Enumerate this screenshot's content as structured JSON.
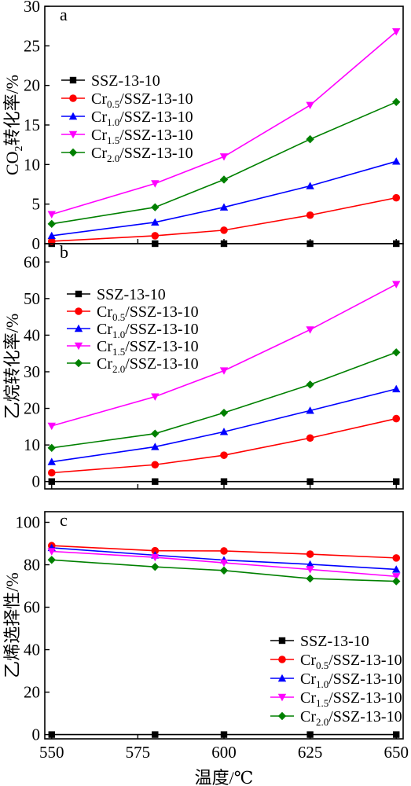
{
  "chart_data": [
    {
      "type": "line",
      "panel_label": "a",
      "ylabel_main": "CO",
      "ylabel_sub": "2",
      "ylabel_rest": "转化率/%",
      "ylim": [
        0,
        30
      ],
      "yticks": [
        0,
        5,
        10,
        15,
        20,
        25,
        30
      ],
      "x": [
        550,
        580,
        600,
        625,
        650
      ],
      "xlim": [
        548,
        652
      ],
      "xticks": [
        550,
        575,
        600,
        625,
        650
      ],
      "series": [
        {
          "name": "SSZ-13-10",
          "name_parts": [
            "",
            "",
            "SSZ-13-10"
          ],
          "color": "#000000",
          "marker": "square",
          "values": [
            0,
            0,
            0,
            0,
            0
          ]
        },
        {
          "name": "Cr0.5/SSZ-13-10",
          "name_parts": [
            "Cr",
            "0.5",
            "/SSZ-13-10"
          ],
          "color": "#ff0000",
          "marker": "circle",
          "values": [
            0.3,
            1.0,
            1.7,
            3.6,
            5.8
          ]
        },
        {
          "name": "Cr1.0/SSZ-13-10",
          "name_parts": [
            "Cr",
            "1.0",
            "/SSZ-13-10"
          ],
          "color": "#0000ff",
          "marker": "triangle-up",
          "values": [
            1.0,
            2.7,
            4.6,
            7.3,
            10.4
          ]
        },
        {
          "name": "Cr1.5/SSZ-13-10",
          "name_parts": [
            "Cr",
            "1.5",
            "/SSZ-13-10"
          ],
          "color": "#ff00ff",
          "marker": "triangle-down",
          "values": [
            3.7,
            7.6,
            11.0,
            17.5,
            26.8
          ]
        },
        {
          "name": "Cr2.0/SSZ-13-10",
          "name_parts": [
            "Cr",
            "2.0",
            "/SSZ-13-10"
          ],
          "color": "#008000",
          "marker": "diamond",
          "values": [
            2.5,
            4.6,
            8.1,
            13.2,
            17.9
          ]
        }
      ]
    },
    {
      "type": "line",
      "panel_label": "b",
      "ylabel_main": "乙烷转化率/%",
      "ylim": [
        -2,
        65
      ],
      "yticks": [
        0,
        10,
        20,
        30,
        40,
        50,
        60
      ],
      "x": [
        550,
        580,
        600,
        625,
        650
      ],
      "xlim": [
        548,
        652
      ],
      "xticks": [
        550,
        575,
        600,
        625,
        650
      ],
      "series": [
        {
          "name": "SSZ-13-10",
          "name_parts": [
            "",
            "",
            "SSZ-13-10"
          ],
          "color": "#000000",
          "marker": "square",
          "values": [
            0,
            0,
            0,
            0,
            0
          ]
        },
        {
          "name": "Cr0.5/SSZ-13-10",
          "name_parts": [
            "Cr",
            "0.5",
            "/SSZ-13-10"
          ],
          "color": "#ff0000",
          "marker": "circle",
          "values": [
            2.4,
            4.6,
            7.2,
            11.9,
            17.2
          ]
        },
        {
          "name": "Cr1.0/SSZ-13-10",
          "name_parts": [
            "Cr",
            "1.0",
            "/SSZ-13-10"
          ],
          "color": "#0000ff",
          "marker": "triangle-up",
          "values": [
            5.4,
            9.5,
            13.6,
            19.4,
            25.3
          ]
        },
        {
          "name": "Cr1.5/SSZ-13-10",
          "name_parts": [
            "Cr",
            "1.5",
            "/SSZ-13-10"
          ],
          "color": "#ff00ff",
          "marker": "triangle-down",
          "values": [
            15.2,
            23.2,
            30.3,
            41.5,
            53.9
          ]
        },
        {
          "name": "Cr2.0/SSZ-13-10",
          "name_parts": [
            "Cr",
            "2.0",
            "/SSZ-13-10"
          ],
          "color": "#008000",
          "marker": "diamond",
          "values": [
            9.2,
            13.1,
            18.8,
            26.5,
            35.3
          ]
        }
      ]
    },
    {
      "type": "line",
      "panel_label": "c",
      "ylabel_main": "乙烯选择性/%",
      "ylim": [
        -2,
        105
      ],
      "yticks": [
        0,
        20,
        40,
        60,
        80,
        100
      ],
      "x": [
        550,
        580,
        600,
        625,
        650
      ],
      "xlim": [
        548,
        652
      ],
      "xticks": [
        550,
        575,
        600,
        625,
        650
      ],
      "xlabel": "温度/℃",
      "series": [
        {
          "name": "SSZ-13-10",
          "name_parts": [
            "",
            "",
            "SSZ-13-10"
          ],
          "color": "#000000",
          "marker": "square",
          "values": [
            0,
            0,
            0,
            0,
            0
          ]
        },
        {
          "name": "Cr0.5/SSZ-13-10",
          "name_parts": [
            "Cr",
            "0.5",
            "/SSZ-13-10"
          ],
          "color": "#ff0000",
          "marker": "circle",
          "values": [
            89.0,
            86.6,
            86.5,
            85.0,
            83.2
          ]
        },
        {
          "name": "Cr1.0/SSZ-13-10",
          "name_parts": [
            "Cr",
            "1.0",
            "/SSZ-13-10"
          ],
          "color": "#0000ff",
          "marker": "triangle-up",
          "values": [
            88.0,
            84.5,
            82.2,
            80.2,
            77.8
          ]
        },
        {
          "name": "Cr1.5/SSZ-13-10",
          "name_parts": [
            "Cr",
            "1.5",
            "/SSZ-13-10"
          ],
          "color": "#ff00ff",
          "marker": "triangle-down",
          "values": [
            86.3,
            83.5,
            80.9,
            77.8,
            74.5
          ]
        },
        {
          "name": "Cr2.0/SSZ-13-10",
          "name_parts": [
            "Cr",
            "2.0",
            "/SSZ-13-10"
          ],
          "color": "#008000",
          "marker": "diamond",
          "values": [
            82.3,
            79.0,
            77.3,
            73.5,
            72.2
          ]
        }
      ]
    }
  ]
}
